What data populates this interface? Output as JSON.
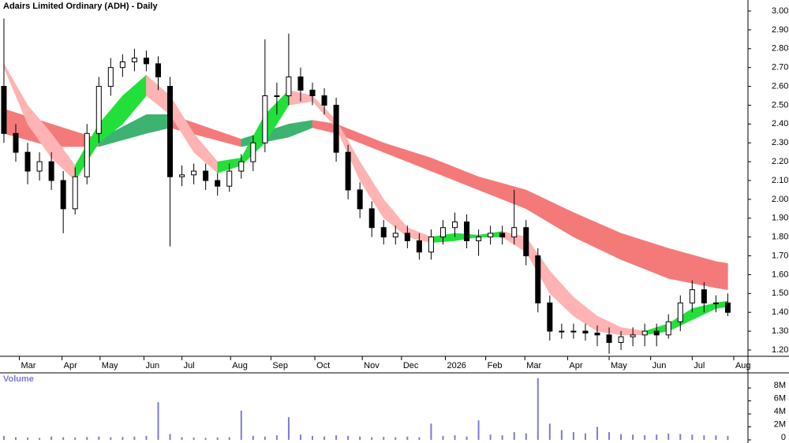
{
  "chart_data": {
    "type": "candlestick",
    "title": "Adairs Limited Ordinary (ADH) - Daily",
    "volume_title": "Volume",
    "up_color": "#ffffff",
    "down_color": "#000000",
    "x": [
      0,
      1,
      2,
      3,
      4,
      5,
      6,
      7,
      8,
      9,
      10,
      11,
      12,
      13,
      14,
      15,
      16,
      17,
      18,
      19,
      20,
      21,
      22,
      23,
      24,
      25,
      26,
      27,
      28,
      29,
      30,
      31,
      32,
      33,
      34,
      35,
      36,
      37,
      38,
      39,
      40,
      41,
      42,
      43,
      44,
      45,
      46,
      47,
      48,
      49,
      50,
      51,
      52,
      53,
      54,
      55,
      56,
      57,
      58,
      59,
      60,
      61
    ],
    "open": [
      2.6,
      2.35,
      2.25,
      2.15,
      2.2,
      2.1,
      1.95,
      2.12,
      2.35,
      2.6,
      2.7,
      2.73,
      2.75,
      2.72,
      2.6,
      2.12,
      2.13,
      2.15,
      2.1,
      2.07,
      2.15,
      2.2,
      2.3,
      2.55,
      2.55,
      2.65,
      2.58,
      2.55,
      2.5,
      2.25,
      2.05,
      1.95,
      1.85,
      1.8,
      1.82,
      1.78,
      1.72,
      1.8,
      1.85,
      1.88,
      1.78,
      1.8,
      1.82,
      1.8,
      1.85,
      1.7,
      1.45,
      1.3,
      1.3,
      1.3,
      1.29,
      1.28,
      1.24,
      1.27,
      1.28,
      1.3,
      1.28,
      1.35,
      1.45,
      1.52,
      1.45,
      1.45
    ],
    "high": [
      2.96,
      2.4,
      2.3,
      2.25,
      2.25,
      2.15,
      2.17,
      2.4,
      2.65,
      2.75,
      2.77,
      2.8,
      2.79,
      2.76,
      2.65,
      2.18,
      2.19,
      2.19,
      2.14,
      2.19,
      2.24,
      2.34,
      2.85,
      2.62,
      2.88,
      2.7,
      2.62,
      2.59,
      2.54,
      2.29,
      2.09,
      1.99,
      1.89,
      1.86,
      1.86,
      1.82,
      1.84,
      1.89,
      1.93,
      1.92,
      1.84,
      1.86,
      1.86,
      2.05,
      1.89,
      1.74,
      1.49,
      1.34,
      1.34,
      1.34,
      1.33,
      1.32,
      1.3,
      1.32,
      1.34,
      1.34,
      1.39,
      1.49,
      1.57,
      1.56,
      1.49,
      1.5
    ],
    "low": [
      2.3,
      2.2,
      2.08,
      2.1,
      2.05,
      1.82,
      1.92,
      2.08,
      2.3,
      2.55,
      2.65,
      2.68,
      2.68,
      2.58,
      1.75,
      2.07,
      2.08,
      2.05,
      2.02,
      2.04,
      2.11,
      2.15,
      2.25,
      2.45,
      2.5,
      2.52,
      2.5,
      2.45,
      2.2,
      2.0,
      1.9,
      1.8,
      1.76,
      1.76,
      1.74,
      1.68,
      1.68,
      1.76,
      1.8,
      1.74,
      1.7,
      1.76,
      1.76,
      1.76,
      1.65,
      1.4,
      1.25,
      1.26,
      1.26,
      1.25,
      1.22,
      1.18,
      1.2,
      1.22,
      1.22,
      1.22,
      1.26,
      1.3,
      1.4,
      1.4,
      1.4,
      1.38
    ],
    "close": [
      2.35,
      2.25,
      2.15,
      2.2,
      2.1,
      1.95,
      2.12,
      2.35,
      2.6,
      2.7,
      2.73,
      2.75,
      2.72,
      2.65,
      2.12,
      2.13,
      2.15,
      2.1,
      2.07,
      2.15,
      2.2,
      2.3,
      2.55,
      2.55,
      2.65,
      2.58,
      2.55,
      2.5,
      2.25,
      2.05,
      1.95,
      1.85,
      1.8,
      1.82,
      1.78,
      1.72,
      1.8,
      1.85,
      1.88,
      1.78,
      1.8,
      1.82,
      1.8,
      1.85,
      1.7,
      1.45,
      1.3,
      1.3,
      1.3,
      1.29,
      1.28,
      1.24,
      1.27,
      1.28,
      1.3,
      1.28,
      1.35,
      1.45,
      1.52,
      1.45,
      1.45,
      1.4
    ],
    "ribbons": [
      {
        "color": "#f47a7a",
        "up_color": "#3cb371",
        "x": [
          0,
          4,
          8,
          12,
          14,
          20,
          24,
          26,
          28,
          32,
          36,
          40,
          44,
          48,
          52,
          56,
          60,
          61
        ],
        "upper": [
          2.48,
          2.4,
          2.32,
          2.45,
          2.45,
          2.32,
          2.4,
          2.42,
          2.4,
          2.3,
          2.22,
          2.12,
          2.05,
          1.93,
          1.82,
          1.74,
          1.67,
          1.66
        ],
        "lower": [
          2.35,
          2.28,
          2.28,
          2.35,
          2.38,
          2.28,
          2.33,
          2.38,
          2.35,
          2.25,
          2.15,
          2.05,
          1.95,
          1.8,
          1.68,
          1.58,
          1.53,
          1.52
        ]
      },
      {
        "color": "#ffb3b3",
        "up_color": "#22e03a",
        "x": [
          0,
          2,
          4,
          6,
          8,
          10,
          12,
          14,
          16,
          18,
          20,
          22,
          24,
          26,
          28,
          30,
          32,
          34,
          36,
          38,
          40,
          42,
          44,
          46,
          48,
          50,
          52,
          54,
          56,
          58,
          60,
          61
        ],
        "upper": [
          2.72,
          2.5,
          2.35,
          2.18,
          2.4,
          2.55,
          2.66,
          2.55,
          2.35,
          2.2,
          2.22,
          2.45,
          2.58,
          2.55,
          2.42,
          2.2,
          2.0,
          1.85,
          1.8,
          1.82,
          1.81,
          1.83,
          1.8,
          1.62,
          1.48,
          1.38,
          1.32,
          1.3,
          1.34,
          1.42,
          1.45,
          1.46
        ],
        "lower": [
          2.7,
          2.4,
          2.22,
          2.1,
          2.3,
          2.4,
          2.55,
          2.45,
          2.25,
          2.14,
          2.18,
          2.3,
          2.5,
          2.52,
          2.38,
          2.1,
          1.9,
          1.8,
          1.77,
          1.78,
          1.8,
          1.8,
          1.72,
          1.5,
          1.38,
          1.3,
          1.28,
          1.28,
          1.3,
          1.36,
          1.42,
          1.43
        ]
      }
    ],
    "xlim": [
      -0.33,
      62.7
    ],
    "xticks": [
      {
        "value": 1.3,
        "label": "Mar"
      },
      {
        "value": 4.9,
        "label": "Apr"
      },
      {
        "value": 8.1,
        "label": "May"
      },
      {
        "value": 11.8,
        "label": "Jun"
      },
      {
        "value": 15,
        "label": "Jul"
      },
      {
        "value": 19.1,
        "label": "Aug"
      },
      {
        "value": 22.5,
        "label": "Sep"
      },
      {
        "value": 26.2,
        "label": "Oct"
      },
      {
        "value": 30.2,
        "label": "Nov"
      },
      {
        "value": 33.5,
        "label": "Dec"
      },
      {
        "value": 37.2,
        "label": "2026"
      },
      {
        "value": 40.6,
        "label": "Feb"
      },
      {
        "value": 43.9,
        "label": "Mar"
      },
      {
        "value": 47.5,
        "label": "Apr"
      },
      {
        "value": 51,
        "label": "May"
      },
      {
        "value": 54.5,
        "label": "Jun"
      },
      {
        "value": 58,
        "label": "Jul"
      },
      {
        "value": 61.5,
        "label": "Aug"
      }
    ],
    "ylim": [
      1.1665,
      3.0586
    ],
    "yticks": [
      {
        "value": 1.2,
        "label": "1.20"
      },
      {
        "value": 1.3,
        "label": "1.30"
      },
      {
        "value": 1.4,
        "label": "1.40"
      },
      {
        "value": 1.5,
        "label": "1.50"
      },
      {
        "value": 1.6,
        "label": "1.60"
      },
      {
        "value": 1.7,
        "label": "1.70"
      },
      {
        "value": 1.8,
        "label": "1.80"
      },
      {
        "value": 1.9,
        "label": "1.90"
      },
      {
        "value": 2,
        "label": "2.00"
      },
      {
        "value": 2.1,
        "label": "2.10"
      },
      {
        "value": 2.2,
        "label": "2.20"
      },
      {
        "value": 2.3,
        "label": "2.30"
      },
      {
        "value": 2.4,
        "label": "2.40"
      },
      {
        "value": 2.5,
        "label": "2.50"
      },
      {
        "value": 2.6,
        "label": "2.60"
      },
      {
        "value": 2.7,
        "label": "2.70"
      },
      {
        "value": 2.8,
        "label": "2.80"
      },
      {
        "value": 2.9,
        "label": "2.90"
      },
      {
        "value": 3,
        "label": "3.00"
      }
    ],
    "volume": [
      600000,
      400000,
      350000,
      300000,
      500000,
      400000,
      350000,
      450000,
      500000,
      400000,
      450000,
      500000,
      600000,
      5800000,
      900000,
      400000,
      350000,
      300000,
      350000,
      400000,
      4500000,
      600000,
      500000,
      700000,
      3500000,
      800000,
      600000,
      500000,
      700000,
      600000,
      500000,
      400000,
      450000,
      400000,
      500000,
      400000,
      2500000,
      600000,
      700000,
      500000,
      3000000,
      800000,
      700000,
      1200000,
      1000000,
      9500000,
      2500000,
      1500000,
      1200000,
      1000000,
      2000000,
      1200000,
      900000,
      800000,
      700000,
      800000,
      1000000,
      900000,
      800000,
      700000,
      700000,
      600000
    ],
    "volume_color": "#7b7bd6",
    "vlim": [
      0,
      10200000
    ],
    "vticks": [
      0,
      {
        "value": 2000000,
        "label": "2M"
      },
      {
        "value": 4000000,
        "label": "4M"
      },
      {
        "value": 6000000,
        "label": "6M"
      },
      {
        "value": 8000000,
        "label": "8M"
      }
    ]
  }
}
